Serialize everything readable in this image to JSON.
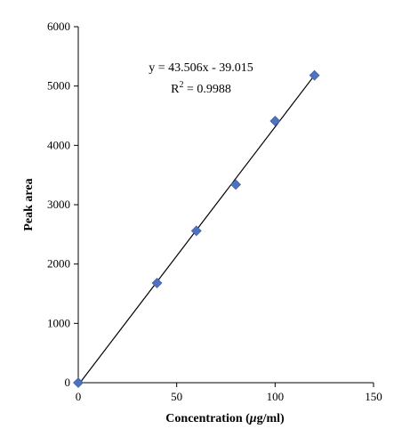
{
  "chart_data": {
    "type": "scatter",
    "title": "",
    "xlabel_prefix": "Concentration (",
    "xlabel_unit_italic": "μ",
    "xlabel_suffix": "g/ml)",
    "ylabel": "Peak area",
    "xlim": [
      0,
      150
    ],
    "ylim": [
      0,
      6000
    ],
    "xticks": [
      0,
      50,
      100,
      150
    ],
    "yticks": [
      0,
      1000,
      2000,
      3000,
      4000,
      5000,
      6000
    ],
    "grid": false,
    "legend": "none",
    "series": [
      {
        "x": [
          0,
          40,
          60,
          80,
          100,
          120
        ],
        "y": [
          0,
          1680,
          2560,
          3340,
          4410,
          5180
        ],
        "marker": "diamond",
        "color": "#4f72be"
      }
    ],
    "trendline": {
      "slope": 43.506,
      "intercept": -39.015,
      "x_range": [
        0,
        120
      ],
      "color": "#000000"
    },
    "annotations": {
      "equation": "y = 43.506x - 39.015",
      "r2_prefix": "R",
      "r2_sup": "2",
      "r2_suffix": " = 0.9988"
    }
  }
}
